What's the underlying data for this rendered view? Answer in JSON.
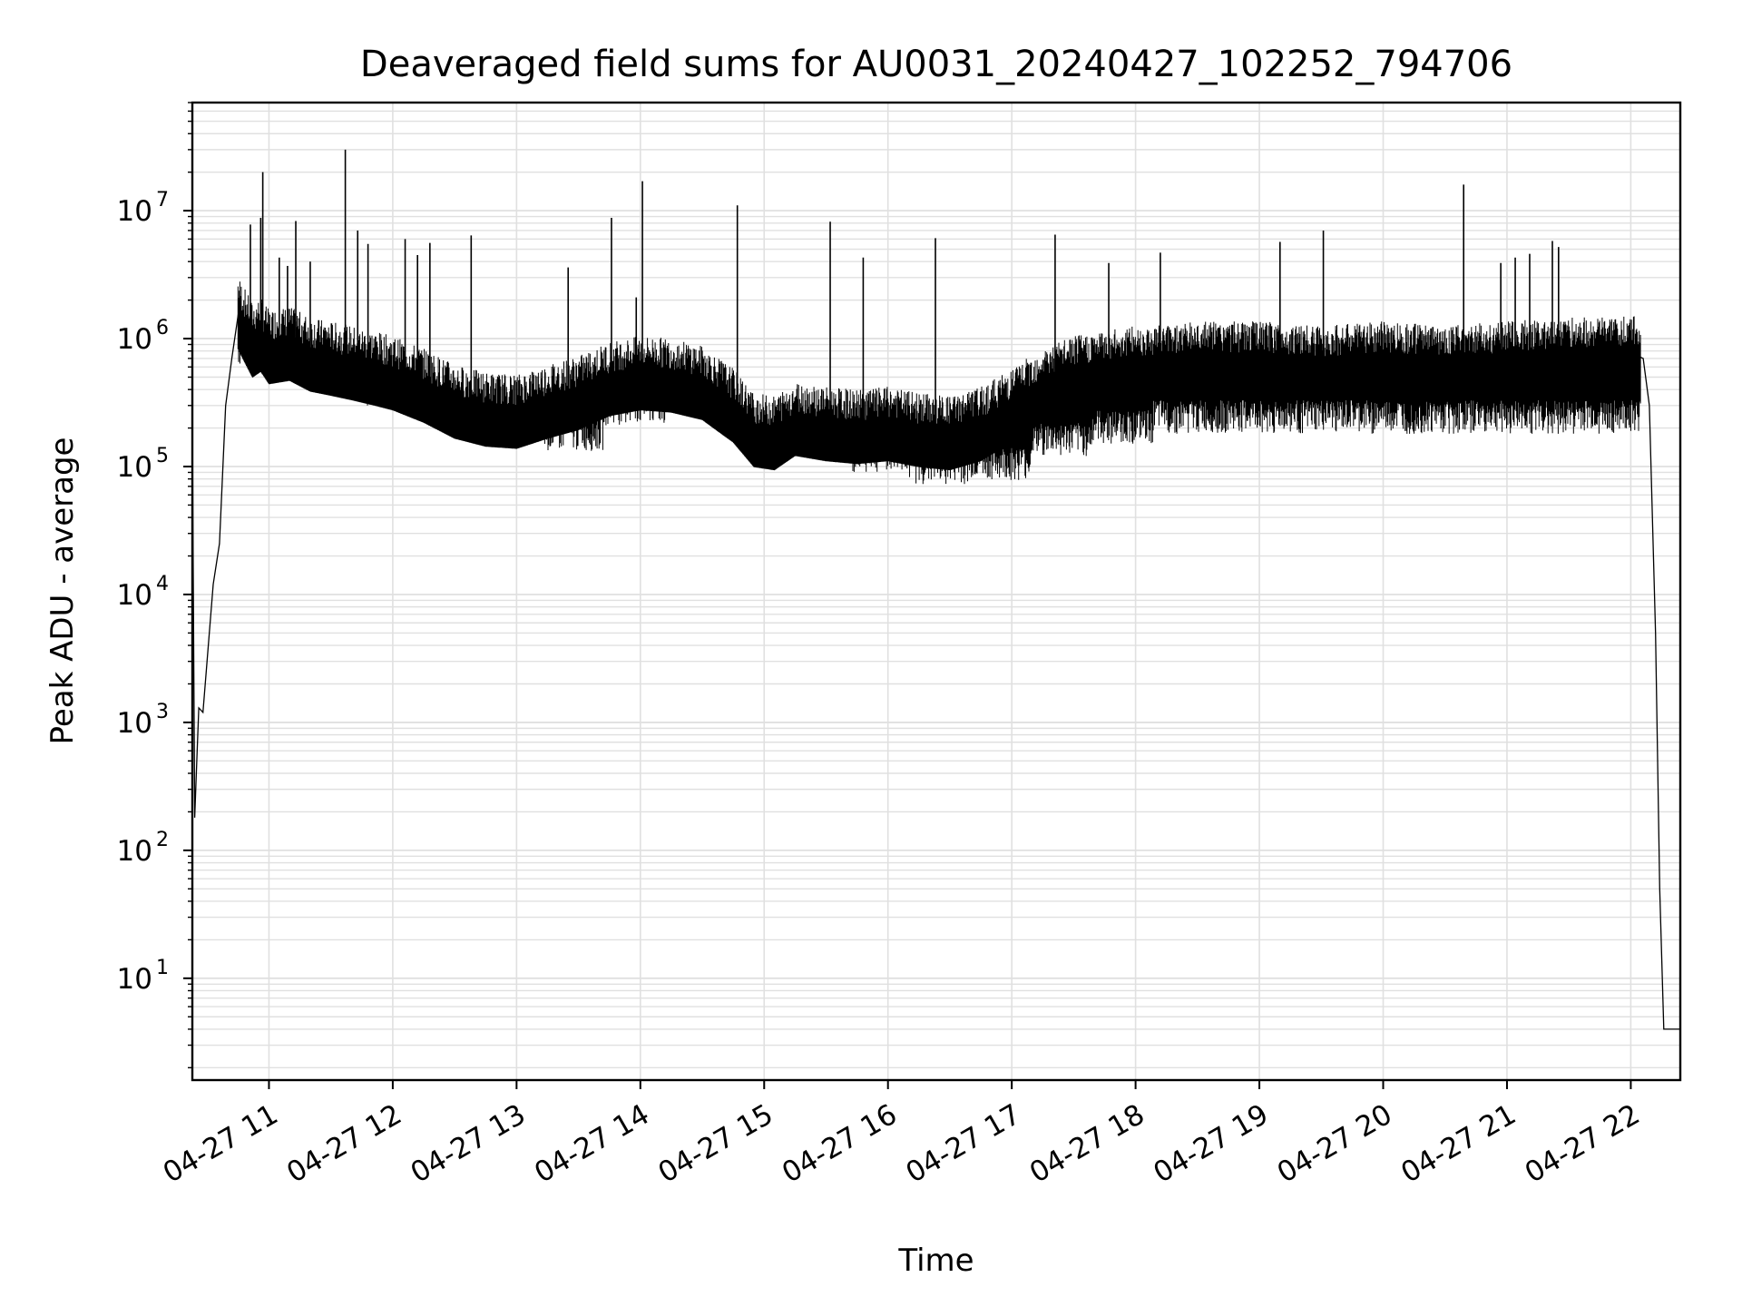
{
  "chart_data": {
    "type": "line",
    "title": "Deaveraged field sums for AU0031_20240427_102252_794706",
    "xlabel": "Time",
    "ylabel": "Peak ADU - average",
    "yscale": "log",
    "ylim": [
      1.6,
      70000000
    ],
    "xlim": [
      "04-27 10:22:52",
      "04-27 22:24:00"
    ],
    "grid": true,
    "x_tick_labels": [
      "04-27 11",
      "04-27 12",
      "04-27 13",
      "04-27 14",
      "04-27 15",
      "04-27 16",
      "04-27 17",
      "04-27 18",
      "04-27 19",
      "04-27 20",
      "04-27 21",
      "04-27 22"
    ],
    "y_tick_labels": [
      {
        "base": "10",
        "exp": "1"
      },
      {
        "base": "10",
        "exp": "2"
      },
      {
        "base": "10",
        "exp": "3"
      },
      {
        "base": "10",
        "exp": "4"
      },
      {
        "base": "10",
        "exp": "5"
      },
      {
        "base": "10",
        "exp": "6"
      },
      {
        "base": "10",
        "exp": "7"
      }
    ],
    "line_color": "#000000",
    "grid_color": "#e0e0e0",
    "series": [
      {
        "x": [
          "04-27 10:22:52",
          "04-27 10:23:00",
          "04-27 10:24:00",
          "04-27 10:25:00",
          "04-27 10:26:00",
          "04-27 10:28:00",
          "04-27 10:30:00",
          "04-27 10:33:00",
          "04-27 10:36:00",
          "04-27 10:39:00",
          "04-27 10:42:00",
          "04-27 10:45:00",
          "04-27 10:48:00",
          "04-27 10:52:00",
          "04-27 10:56:00",
          "04-27 11:00:00",
          "04-27 11:10:00",
          "04-27 11:20:00",
          "04-27 11:30:00",
          "04-27 11:40:00",
          "04-27 11:50:00",
          "04-27 12:00:00",
          "04-27 12:15:00",
          "04-27 12:30:00",
          "04-27 12:45:00",
          "04-27 13:00:00",
          "04-27 13:15:00",
          "04-27 13:30:00",
          "04-27 13:45:00",
          "04-27 14:00:00",
          "04-27 14:15:00",
          "04-27 14:30:00",
          "04-27 14:45:00",
          "04-27 14:55:00",
          "04-27 15:05:00",
          "04-27 15:15:00",
          "04-27 15:30:00",
          "04-27 15:45:00",
          "04-27 16:00:00",
          "04-27 16:15:00",
          "04-27 16:30:00",
          "04-27 16:45:00",
          "04-27 17:00:00",
          "04-27 17:15:00",
          "04-27 17:30:00",
          "04-27 17:45:00",
          "04-27 18:00:00",
          "04-27 18:30:00",
          "04-27 19:00:00",
          "04-27 19:30:00",
          "04-27 20:00:00",
          "04-27 20:30:00",
          "04-27 21:00:00",
          "04-27 21:30:00",
          "04-27 21:55:00",
          "04-27 22:02:00",
          "04-27 22:06:00",
          "04-27 22:09:00",
          "04-27 22:12:00",
          "04-27 22:14:00",
          "04-27 22:16:00",
          "04-27 22:18:00",
          "04-27 22:24:00"
        ],
        "y": [
          1.7,
          100000,
          180,
          500,
          1300,
          1200,
          3000,
          12000,
          25000,
          300000,
          700000,
          1500000,
          1200000,
          900000,
          1000000,
          800000,
          850000,
          700000,
          650000,
          600000,
          550000,
          500000,
          400000,
          300000,
          260000,
          250000,
          300000,
          350000,
          450000,
          500000,
          480000,
          420000,
          280000,
          180000,
          170000,
          220000,
          200000,
          190000,
          200000,
          180000,
          170000,
          200000,
          280000,
          400000,
          500000,
          550000,
          600000,
          650000,
          650000,
          600000,
          650000,
          600000,
          650000,
          700000,
          700000,
          750000,
          700000,
          300000,
          5000,
          50,
          4,
          4,
          4
        ]
      }
    ],
    "noise": {
      "band_low": [
        1000000,
        700000,
        500000,
        400000,
        300000,
        220000,
        350000,
        450000,
        300000,
        200000,
        150000,
        120000,
        130000,
        200000,
        250000,
        300000,
        300000,
        300000,
        300000,
        300000,
        300000,
        300000,
        300000
      ],
      "spikes": [
        {
          "x": "04-27 10:51:00",
          "y": 7800000
        },
        {
          "x": "04-27 10:56:00",
          "y": 8800000
        },
        {
          "x": "04-27 10:57:00",
          "y": 20000000
        },
        {
          "x": "04-27 11:05:00",
          "y": 4300000
        },
        {
          "x": "04-27 11:09:00",
          "y": 3700000
        },
        {
          "x": "04-27 11:13:00",
          "y": 8300000
        },
        {
          "x": "04-27 11:20:00",
          "y": 4000000
        },
        {
          "x": "04-27 11:37:00",
          "y": 30000000
        },
        {
          "x": "04-27 11:43:00",
          "y": 7000000
        },
        {
          "x": "04-27 11:48:00",
          "y": 5500000
        },
        {
          "x": "04-27 12:06:00",
          "y": 6000000
        },
        {
          "x": "04-27 12:12:00",
          "y": 4500000
        },
        {
          "x": "04-27 12:18:00",
          "y": 5600000
        },
        {
          "x": "04-27 12:38:00",
          "y": 6400000
        },
        {
          "x": "04-27 13:25:00",
          "y": 3600000
        },
        {
          "x": "04-27 13:46:00",
          "y": 8800000
        },
        {
          "x": "04-27 13:58:00",
          "y": 2100000
        },
        {
          "x": "04-27 14:01:00",
          "y": 17000000
        },
        {
          "x": "04-27 14:47:00",
          "y": 11000000
        },
        {
          "x": "04-27 15:32:00",
          "y": 8200000
        },
        {
          "x": "04-27 15:48:00",
          "y": 4300000
        },
        {
          "x": "04-27 16:23:00",
          "y": 6100000
        },
        {
          "x": "04-27 17:21:00",
          "y": 6500000
        },
        {
          "x": "04-27 17:47:00",
          "y": 3900000
        },
        {
          "x": "04-27 18:12:00",
          "y": 4700000
        },
        {
          "x": "04-27 19:10:00",
          "y": 5700000
        },
        {
          "x": "04-27 19:31:00",
          "y": 7000000
        },
        {
          "x": "04-27 20:39:00",
          "y": 16000000
        },
        {
          "x": "04-27 20:57:00",
          "y": 3900000
        },
        {
          "x": "04-27 21:04:00",
          "y": 4300000
        },
        {
          "x": "04-27 21:11:00",
          "y": 4600000
        },
        {
          "x": "04-27 21:22:00",
          "y": 5800000
        },
        {
          "x": "04-27 21:25:00",
          "y": 5200000
        }
      ]
    }
  }
}
